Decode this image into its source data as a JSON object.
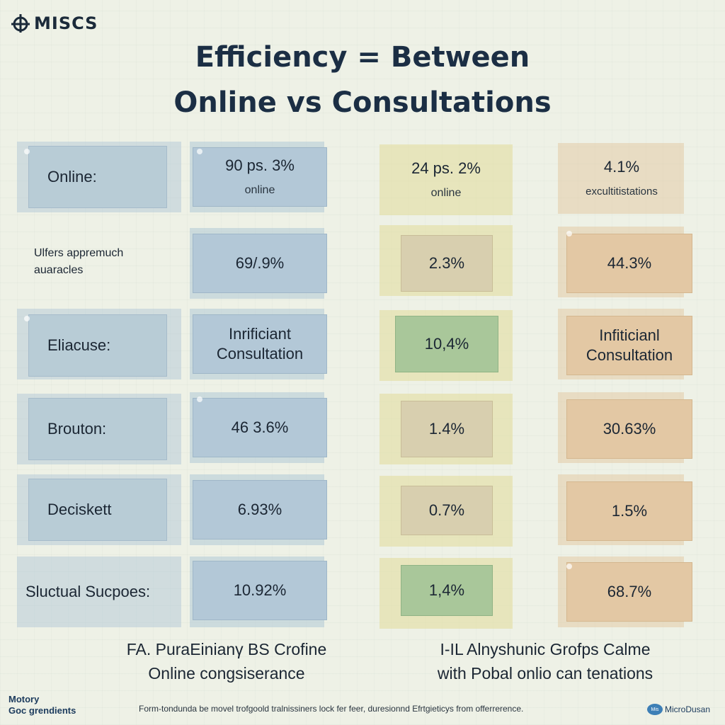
{
  "brand": {
    "name": "MISCS",
    "icon": "circle-bar-logo-icon"
  },
  "title_line1": "Efficiency = Between",
  "title_line2": "Online vs Consultations",
  "rows": [
    {
      "label": "Online:",
      "online": "90 ps. 3%",
      "online_sub": "online",
      "consult": "24 ps. 2%",
      "consult_sub": "online",
      "diff": "4.1%",
      "diff_sub": "excultitistations"
    },
    {
      "label_line1": "Ulfers appremuch",
      "label_line2": "auaracles",
      "online": "69/.9%",
      "consult": "2.3%",
      "diff": "44.3%"
    },
    {
      "label": "Eliacuse:",
      "online_line1": "Inrificiant",
      "online_line2": "Consultation",
      "consult": "10,4%",
      "diff_line1": "Infiticianl",
      "diff_line2": "Consultation"
    },
    {
      "label": "Brouton:",
      "online": "46 3.6%",
      "consult": "1.4%",
      "diff": "30.63%"
    },
    {
      "label": "Deciskett",
      "online": "6.93%",
      "consult": "0.7%",
      "diff": "1.5%"
    },
    {
      "label": "Sluctual Sucpoes:",
      "online": "10.92%",
      "consult": "1,4%",
      "diff": "68.7%"
    }
  ],
  "footer_left_line1": "FA. PuraEinianγ BS Crofine",
  "footer_left_line2": "Online congsiserance",
  "footer_right_line1": "I-IL Alnyshunic Grofps Calme",
  "footer_right_line2": "with Pobal onlio can tenations",
  "bottom_left_line1": "Motory",
  "bottom_left_line2": "Goc grendients",
  "bottom_note": "Form-tondunda be movel trofgoold tralnissiners lock fer feer, duresionnd Efrtgieticys from offerrerence.",
  "bottom_right_badge": "Mis",
  "bottom_right_text": "MicroDusan",
  "colors": {
    "background": "#eef1e6",
    "title": "#1b2e44",
    "online_cell": "#b3c8d7",
    "consult_tan": "#d8cfaf",
    "consult_green": "#a9c79a",
    "consult_outer": "#e2dea0",
    "diff_cell": "#e3c8a4"
  }
}
